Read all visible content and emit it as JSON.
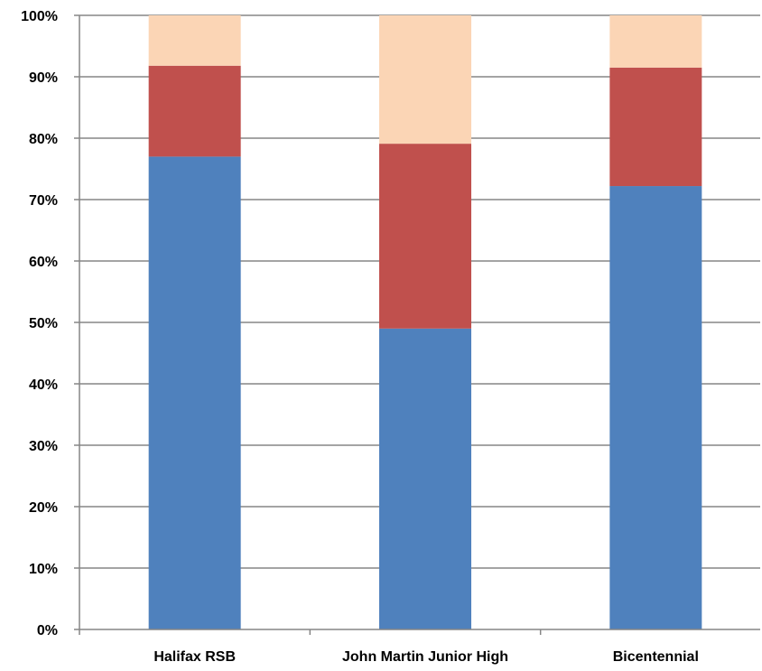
{
  "chart_data": {
    "type": "bar",
    "stacked": true,
    "percent_stacked": true,
    "categories": [
      "Halifax RSB",
      "John Martin Junior High",
      "Bicentennial"
    ],
    "series": [
      {
        "values": [
          77,
          49,
          72.2
        ],
        "color": "#4F81BD"
      },
      {
        "values": [
          14.8,
          30.1,
          19.3
        ],
        "color": "#C0504D"
      },
      {
        "values": [
          8.2,
          20.9,
          8.5
        ],
        "color": "#FBD5B5"
      }
    ],
    "ylim": [
      0,
      100
    ],
    "y_ticks": [
      "0%",
      "10%",
      "20%",
      "30%",
      "40%",
      "50%",
      "60%",
      "70%",
      "80%",
      "90%",
      "100%"
    ],
    "grid": true,
    "gridline_color": "#868686",
    "legend": "none"
  }
}
